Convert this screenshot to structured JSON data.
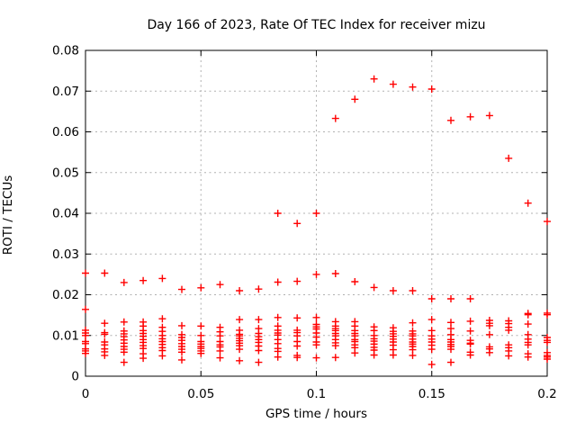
{
  "chart_data": {
    "type": "scatter",
    "title": "Day 166 of 2023, Rate Of TEC Index for receiver mizu",
    "xlabel": "GPS time / hours",
    "ylabel": "ROTI / TECUs",
    "xlim": [
      0,
      0.2
    ],
    "ylim": [
      0,
      0.08
    ],
    "grid": true,
    "grid_style": "dashed",
    "grid_color": "#b0b0b0",
    "legend_position": "none",
    "marker": {
      "shape": "plus",
      "color": "#ff0000",
      "size": 8
    },
    "axis_color": "#000000",
    "xticks": [
      {
        "v": 0,
        "label": "0"
      },
      {
        "v": 0.05,
        "label": "0.05"
      },
      {
        "v": 0.1,
        "label": "0.1"
      },
      {
        "v": 0.15,
        "label": "0.15"
      },
      {
        "v": 0.2,
        "label": "0.2"
      }
    ],
    "yticks": [
      {
        "v": 0,
        "label": "0"
      },
      {
        "v": 0.01,
        "label": "0.01"
      },
      {
        "v": 0.02,
        "label": "0.02"
      },
      {
        "v": 0.03,
        "label": "0.03"
      },
      {
        "v": 0.04,
        "label": "0.04"
      },
      {
        "v": 0.05,
        "label": "0.05"
      },
      {
        "v": 0.06,
        "label": "0.06"
      },
      {
        "v": 0.07,
        "label": "0.07"
      },
      {
        "v": 0.08,
        "label": "0.08"
      }
    ],
    "series": [
      {
        "name": "ROTI",
        "color": "#ff0000",
        "points": [
          [
            0,
            0.0253
          ],
          [
            0,
            0.0164
          ],
          [
            0,
            0.0113
          ],
          [
            0,
            0.0106
          ],
          [
            0,
            0.01
          ],
          [
            0,
            0.0085
          ],
          [
            0,
            0.008
          ],
          [
            0,
            0.0067
          ],
          [
            0,
            0.0062
          ],
          [
            0,
            0.0056
          ],
          [
            0.0083,
            0.0253
          ],
          [
            0.0083,
            0.013
          ],
          [
            0.0083,
            0.0107
          ],
          [
            0.0083,
            0.0103
          ],
          [
            0.0083,
            0.0084
          ],
          [
            0.0083,
            0.0077
          ],
          [
            0.0083,
            0.0067
          ],
          [
            0.0083,
            0.006
          ],
          [
            0.0083,
            0.0051
          ],
          [
            0.0167,
            0.023
          ],
          [
            0.0167,
            0.0133
          ],
          [
            0.0167,
            0.0111
          ],
          [
            0.0167,
            0.0104
          ],
          [
            0.0167,
            0.0097
          ],
          [
            0.0167,
            0.0089
          ],
          [
            0.0167,
            0.0081
          ],
          [
            0.0167,
            0.0073
          ],
          [
            0.0167,
            0.0066
          ],
          [
            0.0167,
            0.0059
          ],
          [
            0.0167,
            0.0034
          ],
          [
            0.025,
            0.0235
          ],
          [
            0.025,
            0.0133
          ],
          [
            0.025,
            0.0123
          ],
          [
            0.025,
            0.0112
          ],
          [
            0.025,
            0.0105
          ],
          [
            0.025,
            0.0098
          ],
          [
            0.025,
            0.009
          ],
          [
            0.025,
            0.0083
          ],
          [
            0.025,
            0.0075
          ],
          [
            0.025,
            0.0068
          ],
          [
            0.025,
            0.0055
          ],
          [
            0.025,
            0.0044
          ],
          [
            0.0333,
            0.024
          ],
          [
            0.0333,
            0.0141
          ],
          [
            0.0333,
            0.012
          ],
          [
            0.0333,
            0.011
          ],
          [
            0.0333,
            0.01
          ],
          [
            0.0333,
            0.0092
          ],
          [
            0.0333,
            0.0085
          ],
          [
            0.0333,
            0.0078
          ],
          [
            0.0333,
            0.007
          ],
          [
            0.0333,
            0.0063
          ],
          [
            0.0333,
            0.005
          ],
          [
            0.0417,
            0.0213
          ],
          [
            0.0417,
            0.0124
          ],
          [
            0.0417,
            0.0102
          ],
          [
            0.0417,
            0.0095
          ],
          [
            0.0417,
            0.0088
          ],
          [
            0.0417,
            0.008
          ],
          [
            0.0417,
            0.0073
          ],
          [
            0.0417,
            0.0066
          ],
          [
            0.0417,
            0.0059
          ],
          [
            0.0417,
            0.004
          ],
          [
            0.05,
            0.0217
          ],
          [
            0.05,
            0.0123
          ],
          [
            0.05,
            0.01
          ],
          [
            0.05,
            0.0085
          ],
          [
            0.05,
            0.0079
          ],
          [
            0.05,
            0.0073
          ],
          [
            0.05,
            0.0068
          ],
          [
            0.05,
            0.0062
          ],
          [
            0.05,
            0.0056
          ],
          [
            0.0583,
            0.0225
          ],
          [
            0.0583,
            0.012
          ],
          [
            0.0583,
            0.0109
          ],
          [
            0.0583,
            0.0099
          ],
          [
            0.0583,
            0.0085
          ],
          [
            0.0583,
            0.0077
          ],
          [
            0.0583,
            0.0072
          ],
          [
            0.0583,
            0.0062
          ],
          [
            0.0583,
            0.0045
          ],
          [
            0.0667,
            0.021
          ],
          [
            0.0667,
            0.0139
          ],
          [
            0.0667,
            0.0113
          ],
          [
            0.0667,
            0.0103
          ],
          [
            0.0667,
            0.0099
          ],
          [
            0.0667,
            0.0093
          ],
          [
            0.0667,
            0.0087
          ],
          [
            0.0667,
            0.0081
          ],
          [
            0.0667,
            0.0075
          ],
          [
            0.0667,
            0.0066
          ],
          [
            0.0667,
            0.0038
          ],
          [
            0.075,
            0.0214
          ],
          [
            0.075,
            0.0139
          ],
          [
            0.075,
            0.0117
          ],
          [
            0.075,
            0.0105
          ],
          [
            0.075,
            0.0097
          ],
          [
            0.075,
            0.009
          ],
          [
            0.075,
            0.0083
          ],
          [
            0.075,
            0.0074
          ],
          [
            0.075,
            0.0063
          ],
          [
            0.075,
            0.0034
          ],
          [
            0.0833,
            0.04
          ],
          [
            0.0833,
            0.0231
          ],
          [
            0.0833,
            0.0144
          ],
          [
            0.0833,
            0.0123
          ],
          [
            0.0833,
            0.0113
          ],
          [
            0.0833,
            0.0106
          ],
          [
            0.0833,
            0.0101
          ],
          [
            0.0833,
            0.009
          ],
          [
            0.0833,
            0.008
          ],
          [
            0.0833,
            0.0068
          ],
          [
            0.0833,
            0.0061
          ],
          [
            0.0833,
            0.0047
          ],
          [
            0.0917,
            0.0375
          ],
          [
            0.0917,
            0.0233
          ],
          [
            0.0917,
            0.0143
          ],
          [
            0.0917,
            0.0113
          ],
          [
            0.0917,
            0.0107
          ],
          [
            0.0917,
            0.0099
          ],
          [
            0.0917,
            0.0085
          ],
          [
            0.0917,
            0.0074
          ],
          [
            0.0917,
            0.0051
          ],
          [
            0.0917,
            0.0046
          ],
          [
            0.1,
            0.04
          ],
          [
            0.1,
            0.025
          ],
          [
            0.1,
            0.0144
          ],
          [
            0.1,
            0.0127
          ],
          [
            0.1,
            0.0121
          ],
          [
            0.1,
            0.0116
          ],
          [
            0.1,
            0.0106
          ],
          [
            0.1,
            0.0096
          ],
          [
            0.1,
            0.0084
          ],
          [
            0.1,
            0.0077
          ],
          [
            0.1,
            0.0045
          ],
          [
            0.1083,
            0.0633
          ],
          [
            0.1083,
            0.0252
          ],
          [
            0.1083,
            0.0134
          ],
          [
            0.1083,
            0.0123
          ],
          [
            0.1083,
            0.0117
          ],
          [
            0.1083,
            0.0112
          ],
          [
            0.1083,
            0.0105
          ],
          [
            0.1083,
            0.0099
          ],
          [
            0.1083,
            0.009
          ],
          [
            0.1083,
            0.0082
          ],
          [
            0.1083,
            0.0075
          ],
          [
            0.1083,
            0.0046
          ],
          [
            0.1167,
            0.068
          ],
          [
            0.1167,
            0.0232
          ],
          [
            0.1167,
            0.0134
          ],
          [
            0.1167,
            0.0123
          ],
          [
            0.1167,
            0.0112
          ],
          [
            0.1167,
            0.0105
          ],
          [
            0.1167,
            0.0099
          ],
          [
            0.1167,
            0.009
          ],
          [
            0.1167,
            0.0085
          ],
          [
            0.1167,
            0.0077
          ],
          [
            0.1167,
            0.007
          ],
          [
            0.1167,
            0.0057
          ],
          [
            0.125,
            0.073
          ],
          [
            0.125,
            0.0218
          ],
          [
            0.125,
            0.0121
          ],
          [
            0.125,
            0.0112
          ],
          [
            0.125,
            0.01
          ],
          [
            0.125,
            0.0092
          ],
          [
            0.125,
            0.0086
          ],
          [
            0.125,
            0.0079
          ],
          [
            0.125,
            0.0071
          ],
          [
            0.125,
            0.0064
          ],
          [
            0.125,
            0.0052
          ],
          [
            0.1333,
            0.0717
          ],
          [
            0.1333,
            0.021
          ],
          [
            0.1333,
            0.0119
          ],
          [
            0.1333,
            0.011
          ],
          [
            0.1333,
            0.0104
          ],
          [
            0.1333,
            0.0098
          ],
          [
            0.1333,
            0.0091
          ],
          [
            0.1333,
            0.0084
          ],
          [
            0.1333,
            0.0076
          ],
          [
            0.1333,
            0.0065
          ],
          [
            0.1333,
            0.0052
          ],
          [
            0.1417,
            0.071
          ],
          [
            0.1417,
            0.021
          ],
          [
            0.1417,
            0.0131
          ],
          [
            0.1417,
            0.0111
          ],
          [
            0.1417,
            0.0104
          ],
          [
            0.1417,
            0.0099
          ],
          [
            0.1417,
            0.0091
          ],
          [
            0.1417,
            0.0084
          ],
          [
            0.1417,
            0.0079
          ],
          [
            0.1417,
            0.0073
          ],
          [
            0.1417,
            0.0065
          ],
          [
            0.1417,
            0.0051
          ],
          [
            0.15,
            0.0705
          ],
          [
            0.15,
            0.019
          ],
          [
            0.15,
            0.0139
          ],
          [
            0.15,
            0.0112
          ],
          [
            0.15,
            0.0099
          ],
          [
            0.15,
            0.0091
          ],
          [
            0.15,
            0.0084
          ],
          [
            0.15,
            0.0076
          ],
          [
            0.15,
            0.0066
          ],
          [
            0.15,
            0.0029
          ],
          [
            0.1583,
            0.0628
          ],
          [
            0.1583,
            0.019
          ],
          [
            0.1583,
            0.0132
          ],
          [
            0.1583,
            0.0117
          ],
          [
            0.1583,
            0.0102
          ],
          [
            0.1583,
            0.009
          ],
          [
            0.1583,
            0.0084
          ],
          [
            0.1583,
            0.0078
          ],
          [
            0.1583,
            0.0073
          ],
          [
            0.1583,
            0.0066
          ],
          [
            0.1583,
            0.0034
          ],
          [
            0.1667,
            0.0637
          ],
          [
            0.1667,
            0.019
          ],
          [
            0.1667,
            0.0135
          ],
          [
            0.1667,
            0.0111
          ],
          [
            0.1667,
            0.0088
          ],
          [
            0.1667,
            0.0081
          ],
          [
            0.1667,
            0.0079
          ],
          [
            0.1667,
            0.0059
          ],
          [
            0.1667,
            0.0052
          ],
          [
            0.175,
            0.064
          ],
          [
            0.175,
            0.0137
          ],
          [
            0.175,
            0.013
          ],
          [
            0.175,
            0.0124
          ],
          [
            0.175,
            0.0102
          ],
          [
            0.175,
            0.0072
          ],
          [
            0.175,
            0.0067
          ],
          [
            0.175,
            0.0058
          ],
          [
            0.1833,
            0.0535
          ],
          [
            0.1833,
            0.0136
          ],
          [
            0.1833,
            0.0129
          ],
          [
            0.1833,
            0.012
          ],
          [
            0.1833,
            0.0113
          ],
          [
            0.1833,
            0.0077
          ],
          [
            0.1833,
            0.007
          ],
          [
            0.1833,
            0.0062
          ],
          [
            0.1833,
            0.005
          ],
          [
            0.1917,
            0.0425
          ],
          [
            0.1917,
            0.0154
          ],
          [
            0.1917,
            0.0151
          ],
          [
            0.1917,
            0.0128
          ],
          [
            0.1917,
            0.0102
          ],
          [
            0.1917,
            0.0091
          ],
          [
            0.1917,
            0.0083
          ],
          [
            0.1917,
            0.0077
          ],
          [
            0.1917,
            0.0055
          ],
          [
            0.1917,
            0.0047
          ],
          [
            0.2,
            0.038
          ],
          [
            0.2,
            0.0155
          ],
          [
            0.2,
            0.0151
          ],
          [
            0.2,
            0.0095
          ],
          [
            0.2,
            0.0088
          ],
          [
            0.2,
            0.0083
          ],
          [
            0.2,
            0.0058
          ],
          [
            0.2,
            0.0051
          ],
          [
            0.2,
            0.0047
          ],
          [
            0.2,
            0.0042
          ]
        ]
      }
    ]
  }
}
